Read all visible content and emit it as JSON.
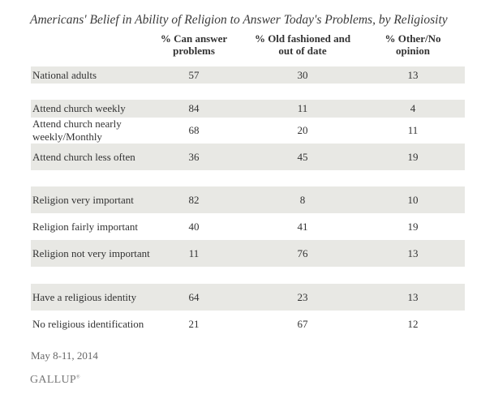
{
  "chart_data": {
    "type": "table",
    "title": "Americans' Belief in Ability of Religion to Answer Today's Problems, by Religiosity",
    "columns": [
      "% Can answer problems",
      "% Old fashioned and out of date",
      "% Other/No opinion"
    ],
    "rows": [
      {
        "label": "National adults",
        "values": [
          "57",
          "30",
          "13"
        ],
        "shaded": true,
        "group": 1
      },
      {
        "label": "Attend church weekly",
        "values": [
          "84",
          "11",
          "4"
        ],
        "shaded": true,
        "group": 2
      },
      {
        "label": "Attend church nearly weekly/Monthly",
        "values": [
          "68",
          "20",
          "11"
        ],
        "shaded": false,
        "group": 2
      },
      {
        "label": "Attend church less often",
        "values": [
          "36",
          "45",
          "19"
        ],
        "shaded": true,
        "group": 2
      },
      {
        "label": "Religion very important",
        "values": [
          "82",
          "8",
          "10"
        ],
        "shaded": true,
        "group": 3
      },
      {
        "label": "Religion fairly important",
        "values": [
          "40",
          "41",
          "19"
        ],
        "shaded": false,
        "group": 3
      },
      {
        "label": "Religion not very important",
        "values": [
          "11",
          "76",
          "13"
        ],
        "shaded": true,
        "group": 3
      },
      {
        "label": "Have a religious identity",
        "values": [
          "64",
          "23",
          "13"
        ],
        "shaded": true,
        "group": 4
      },
      {
        "label": "No religious identification",
        "values": [
          "21",
          "67",
          "12"
        ],
        "shaded": false,
        "group": 4
      }
    ],
    "shade_color": "#e8e8e4"
  },
  "footer": {
    "date": "May 8-11, 2014",
    "logo": "GALLUP"
  }
}
